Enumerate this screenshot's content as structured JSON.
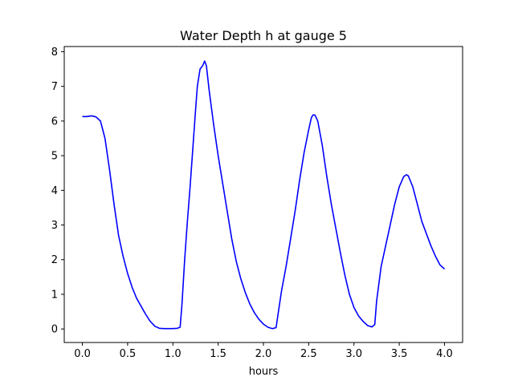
{
  "chart_data": {
    "type": "line",
    "title": "Water Depth h at gauge 5",
    "xlabel": "hours",
    "ylabel": "",
    "xlim": [
      -0.2,
      4.2
    ],
    "ylim": [
      -0.39,
      8.15
    ],
    "xticks": [
      0.0,
      0.5,
      1.0,
      1.5,
      2.0,
      2.5,
      3.0,
      3.5,
      4.0
    ],
    "xtick_labels": [
      "0.0",
      "0.5",
      "1.0",
      "1.5",
      "2.0",
      "2.5",
      "3.0",
      "3.5",
      "4.0"
    ],
    "yticks": [
      0,
      1,
      2,
      3,
      4,
      5,
      6,
      7,
      8
    ],
    "ytick_labels": [
      "0",
      "1",
      "2",
      "3",
      "4",
      "5",
      "6",
      "7",
      "8"
    ],
    "grid": false,
    "series": [
      {
        "color": "#0000ff",
        "x": [
          0.0,
          0.05,
          0.1,
          0.15,
          0.2,
          0.25,
          0.3,
          0.35,
          0.4,
          0.45,
          0.5,
          0.55,
          0.6,
          0.65,
          0.7,
          0.75,
          0.8,
          0.85,
          0.9,
          0.95,
          1.0,
          1.05,
          1.08,
          1.1,
          1.13,
          1.16,
          1.19,
          1.22,
          1.25,
          1.27,
          1.3,
          1.33,
          1.35,
          1.37,
          1.4,
          1.45,
          1.5,
          1.55,
          1.6,
          1.65,
          1.7,
          1.75,
          1.8,
          1.85,
          1.9,
          1.95,
          2.0,
          2.05,
          2.1,
          2.14,
          2.16,
          2.2,
          2.25,
          2.3,
          2.35,
          2.4,
          2.45,
          2.5,
          2.53,
          2.55,
          2.57,
          2.6,
          2.65,
          2.7,
          2.75,
          2.8,
          2.85,
          2.9,
          2.95,
          3.0,
          3.05,
          3.1,
          3.15,
          3.2,
          3.23,
          3.25,
          3.3,
          3.35,
          3.4,
          3.45,
          3.5,
          3.55,
          3.58,
          3.6,
          3.65,
          3.7,
          3.75,
          3.8,
          3.85,
          3.9,
          3.95,
          4.0
        ],
        "values": [
          6.13,
          6.13,
          6.15,
          6.12,
          6.0,
          5.5,
          4.6,
          3.6,
          2.7,
          2.1,
          1.6,
          1.2,
          0.88,
          0.65,
          0.42,
          0.22,
          0.08,
          0.02,
          0.01,
          0.01,
          0.01,
          0.02,
          0.05,
          0.7,
          2.0,
          3.1,
          4.1,
          5.2,
          6.3,
          7.0,
          7.5,
          7.6,
          7.73,
          7.6,
          6.9,
          5.9,
          5.0,
          4.2,
          3.4,
          2.6,
          1.95,
          1.45,
          1.05,
          0.72,
          0.47,
          0.28,
          0.14,
          0.05,
          0.01,
          0.04,
          0.4,
          1.1,
          1.8,
          2.6,
          3.4,
          4.3,
          5.1,
          5.75,
          6.1,
          6.18,
          6.17,
          6.0,
          5.3,
          4.4,
          3.6,
          2.9,
          2.2,
          1.55,
          1.0,
          0.62,
          0.38,
          0.22,
          0.1,
          0.06,
          0.13,
          0.8,
          1.8,
          2.4,
          3.0,
          3.6,
          4.1,
          4.4,
          4.45,
          4.42,
          4.1,
          3.6,
          3.1,
          2.75,
          2.4,
          2.1,
          1.85,
          1.73
        ]
      }
    ]
  }
}
